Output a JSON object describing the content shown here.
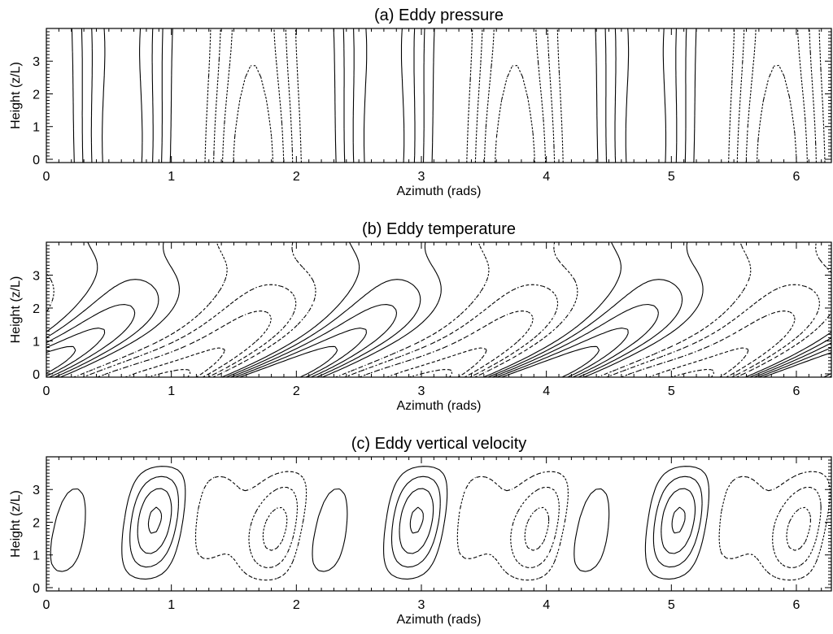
{
  "chart_data": [
    {
      "type": "contour",
      "title": "(a) Eddy pressure",
      "xlabel": "Azimuth (rads)",
      "ylabel": "Height (z/L)",
      "xlim": [
        0,
        6.28
      ],
      "ylim": [
        -0.1,
        4.0
      ],
      "x_ticks": [
        "0",
        "1",
        "2",
        "3",
        "4",
        "5",
        "6"
      ],
      "y_ticks": [
        "0",
        "1",
        "2",
        "3"
      ],
      "line_style": "solid = positive, dotted = negative"
    },
    {
      "type": "contour",
      "title": "(b) Eddy temperature",
      "xlabel": "Azimuth (rads)",
      "ylabel": "Height (z/L)",
      "xlim": [
        0,
        6.28
      ],
      "ylim": [
        -0.1,
        4.0
      ],
      "x_ticks": [
        "0",
        "1",
        "2",
        "3",
        "4",
        "5",
        "6"
      ],
      "y_ticks": [
        "0",
        "1",
        "2",
        "3"
      ],
      "line_style": "solid = positive, dotted = negative"
    },
    {
      "type": "contour",
      "title": "(c) Eddy vertical velocity",
      "xlabel": "Azimuth (rads)",
      "ylabel": "Height (z/L)",
      "xlim": [
        0,
        6.28
      ],
      "ylim": [
        -0.1,
        4.0
      ],
      "x_ticks": [
        "0",
        "1",
        "2",
        "3",
        "4",
        "5",
        "6"
      ],
      "y_ticks": [
        "0",
        "1",
        "2",
        "3"
      ],
      "line_style": "solid = positive, dotted = negative"
    }
  ]
}
